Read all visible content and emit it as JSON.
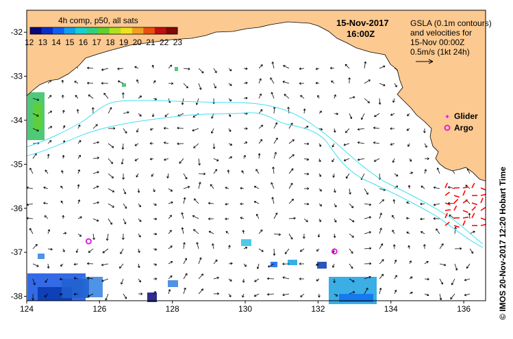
{
  "title": {
    "date": "15-Nov-2017",
    "time": "16:00Z"
  },
  "colorbar": {
    "title": "4h comp, p50, all sats",
    "labels": [
      "12",
      "13",
      "14",
      "15",
      "16",
      "17",
      "18",
      "19",
      "20",
      "21",
      "22",
      "23"
    ],
    "colors": [
      "#08087a",
      "#0a2cc8",
      "#1060f0",
      "#10a0f0",
      "#18d0d0",
      "#30d080",
      "#60d030",
      "#b0e020",
      "#f0e020",
      "#f0a020",
      "#e85010",
      "#c01010",
      "#800808"
    ]
  },
  "velocity_note": {
    "line1": "GSLA (0.1m contours)",
    "line2": "and velocities for",
    "line3": "15-Nov 00:00Z",
    "line4": "0.5m/s (1kt 24h)"
  },
  "platform_legend": {
    "glider": "Glider",
    "argo": "Argo"
  },
  "credit": "© IMOS 20-Nov-2017 12:20 Hobart Time",
  "axes": {
    "x_ticks": [
      "124",
      "126",
      "128",
      "130",
      "132",
      "134",
      "136"
    ],
    "y_ticks": [
      "-32",
      "-33",
      "-34",
      "-35",
      "-36",
      "-37",
      "-38"
    ],
    "lon_range": [
      124,
      136.6
    ],
    "lat_range": [
      -38.1,
      -31.5
    ]
  },
  "argo_floats": [
    {
      "lon": 125.7,
      "lat": -36.75
    },
    {
      "lon": 132.45,
      "lat": -36.98
    }
  ],
  "colors": {
    "land": "#fcc990",
    "contour": "#40e0f0",
    "arrow": "#000000",
    "hf_arrow": "#ff0000",
    "argo": "#e020e0"
  }
}
